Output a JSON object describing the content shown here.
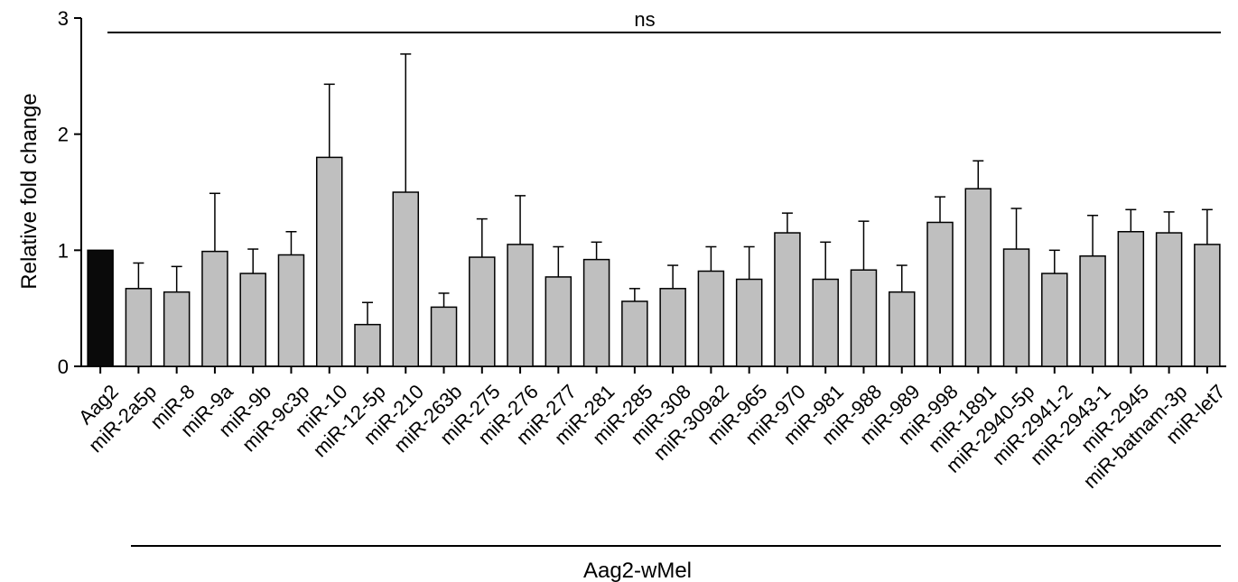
{
  "chart_data": {
    "type": "bar",
    "title": "",
    "xlabel": "",
    "ylabel": "Relative fold change",
    "ylim": [
      0,
      3
    ],
    "yticks": [
      0,
      1,
      2,
      3
    ],
    "categories": [
      "Aag2",
      "miR-2a5p",
      "miR-8",
      "miR-9a",
      "miR-9b",
      "miR-9c3p",
      "miR-10",
      "miR-12-5p",
      "miR-210",
      "miR-263b",
      "miR-275",
      "miR-276",
      "miR-277",
      "miR-281",
      "miR-285",
      "miR-308",
      "miR-309a2",
      "miR-965",
      "miR-970",
      "miR-981",
      "miR-988",
      "miR-989",
      "miR-998",
      "miR-1891",
      "miR-2940-5p",
      "miR-2941-2",
      "miR-2943-1",
      "miR-2945",
      "miR-batnam-3p",
      "miR-let7"
    ],
    "values": [
      1.0,
      0.67,
      0.64,
      0.99,
      0.8,
      0.96,
      1.8,
      0.36,
      1.5,
      0.51,
      0.94,
      1.05,
      0.77,
      0.92,
      0.56,
      0.67,
      0.82,
      0.75,
      1.15,
      0.75,
      0.83,
      0.64,
      1.24,
      1.53,
      1.01,
      0.8,
      0.95,
      1.16,
      1.15,
      1.05
    ],
    "error_upper": [
      1.0,
      0.89,
      0.86,
      1.49,
      1.01,
      1.16,
      2.43,
      0.55,
      2.69,
      0.63,
      1.27,
      1.47,
      1.03,
      1.07,
      0.67,
      0.87,
      1.03,
      1.03,
      1.32,
      1.07,
      1.25,
      0.87,
      1.46,
      1.77,
      1.36,
      1.0,
      1.3,
      1.35,
      1.33,
      1.35
    ],
    "bar_colors": [
      "#0a0a0a",
      "#bfbfbf"
    ],
    "significance_label": "ns",
    "group_label": "Aag2-wMel",
    "grid": false
  }
}
